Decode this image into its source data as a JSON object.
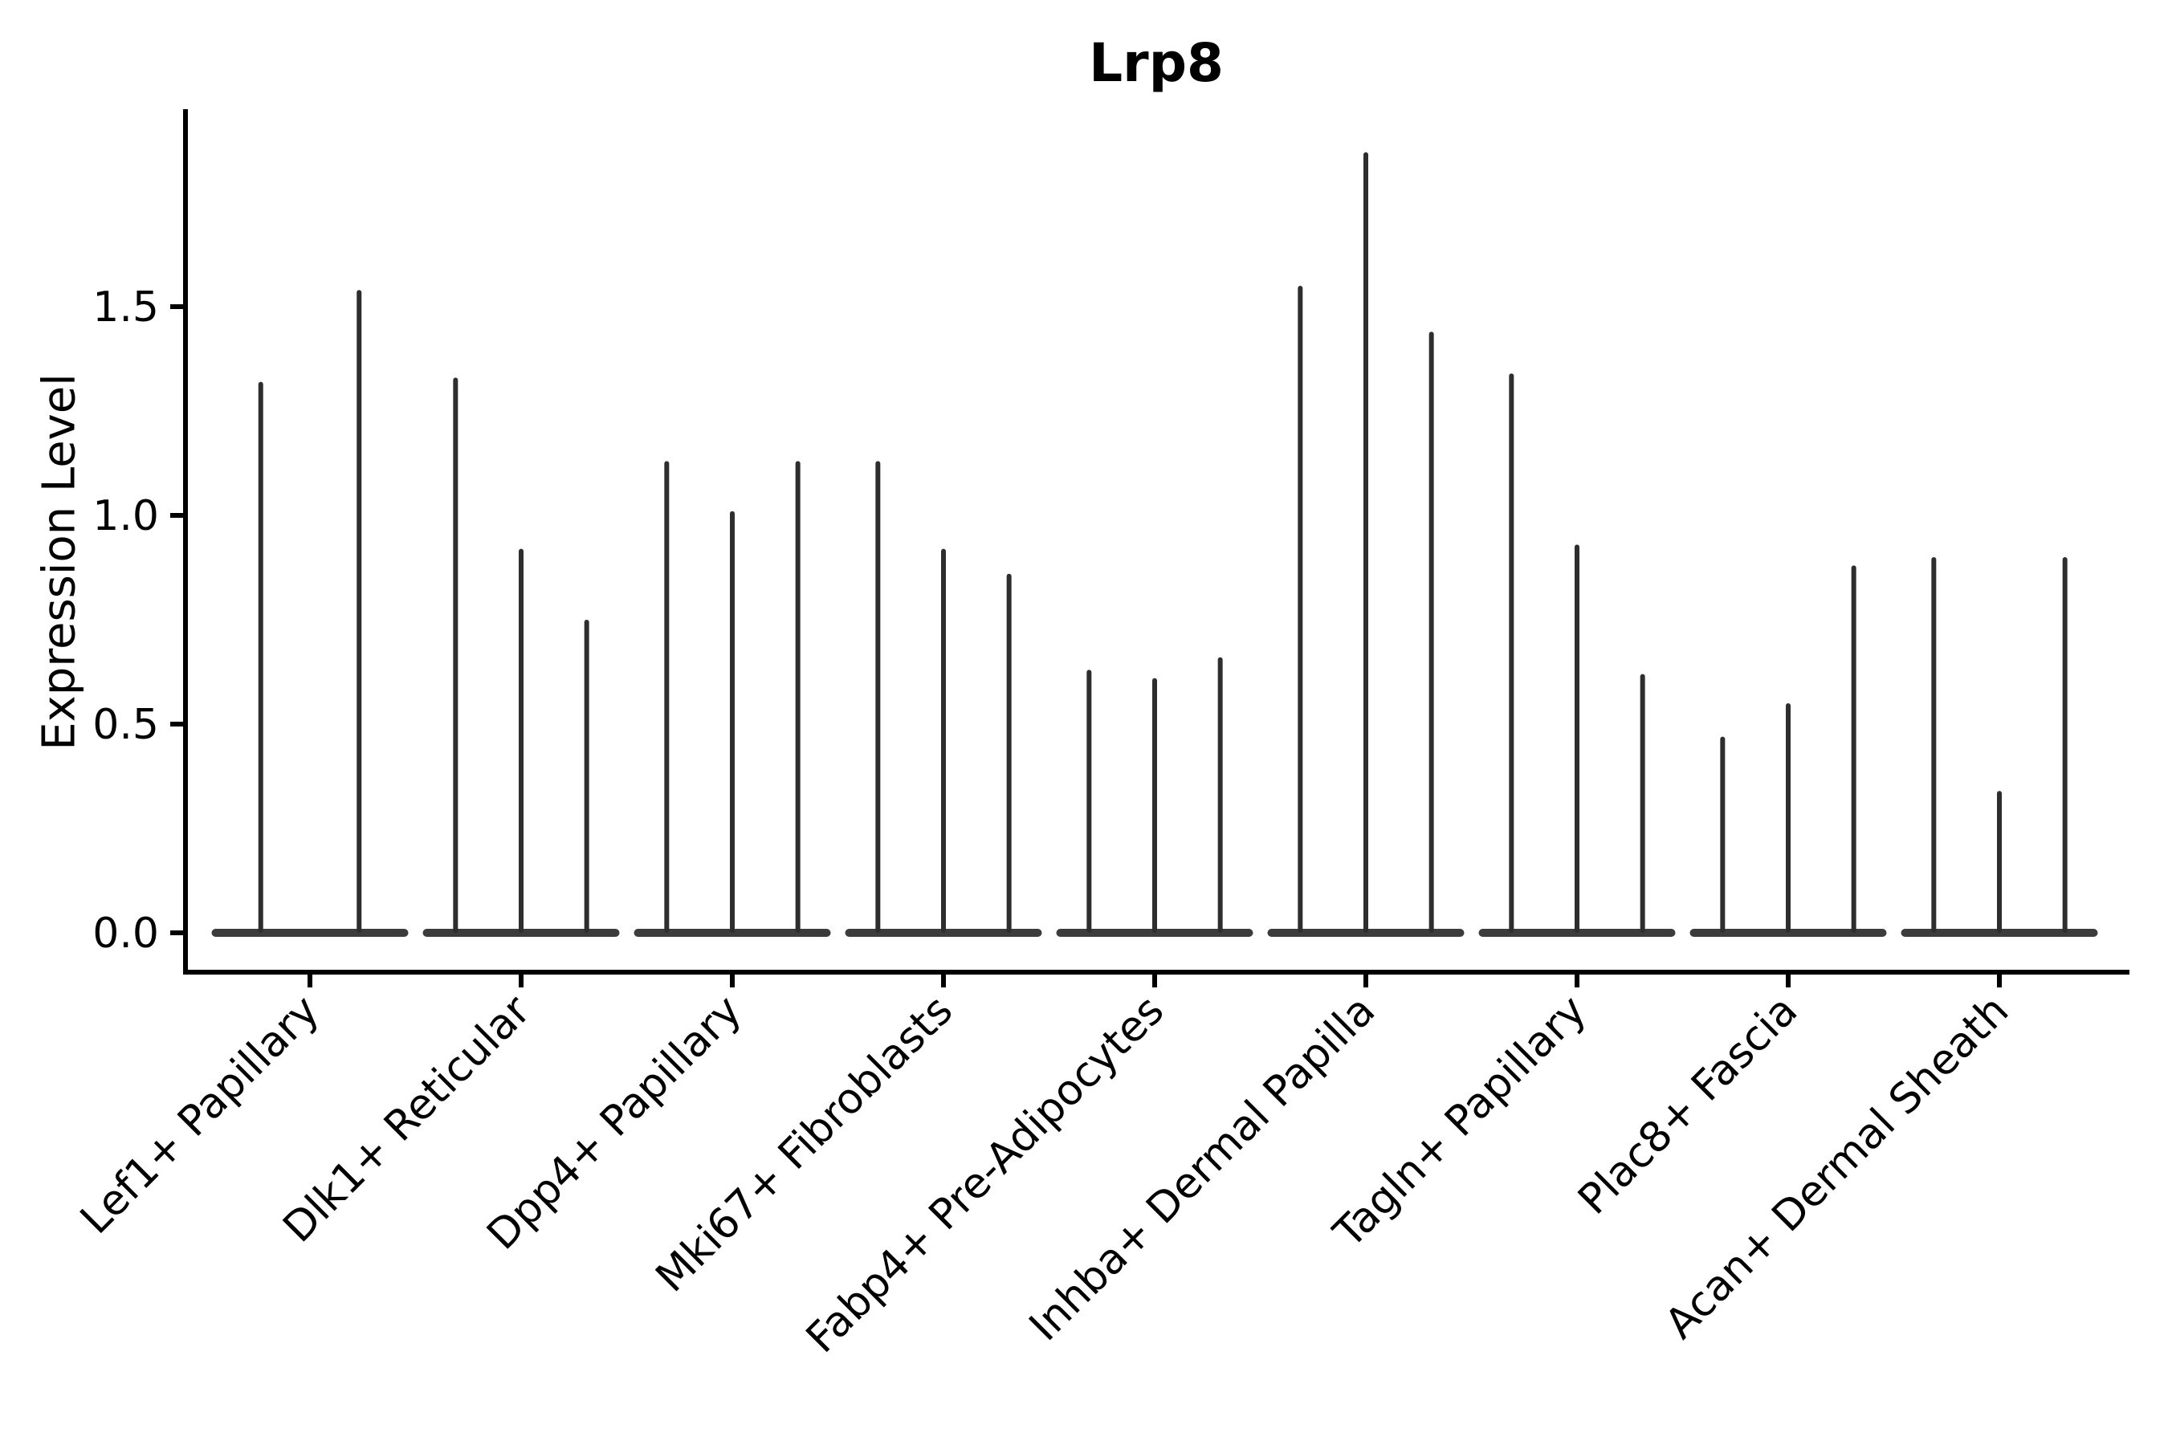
{
  "chart_data": {
    "type": "violin",
    "title": "Lrp8",
    "ylabel": "Expression Level",
    "xlabel": "",
    "categories": [
      "Lef1+ Papillary",
      "Dlk1+ Reticular",
      "Dpp4+ Papillary",
      "Mki67+ Fibroblasts",
      "Fabp4+ Pre-Adipocytes",
      "Inhba+ Dermal Papilla",
      "Tagln+ Papillary",
      "Plac8+ Fascia",
      "Acan+ Dermal Sheath"
    ],
    "violin_maxima": [
      [
        1.32,
        1.54
      ],
      [
        1.33,
        0.92,
        0.75
      ],
      [
        1.13,
        1.01,
        1.13
      ],
      [
        1.13,
        0.92,
        0.86
      ],
      [
        0.63,
        0.61,
        0.66
      ],
      [
        1.55,
        1.87,
        1.44
      ],
      [
        1.34,
        0.93,
        0.62
      ],
      [
        0.47,
        0.55,
        0.88
      ],
      [
        0.9,
        0.34,
        0.9
      ]
    ],
    "n_violins_per_category": [
      2,
      3,
      3,
      3,
      3,
      3,
      3,
      3,
      3
    ],
    "baseline_value": 0.0,
    "yticks": [
      0.0,
      0.5,
      1.0,
      1.5
    ],
    "ytick_labels": [
      "0.0",
      "0.5",
      "1.0",
      "1.5"
    ],
    "ylim": [
      -0.09,
      1.96
    ],
    "grid": false,
    "legend": null,
    "colors": {
      "spike": "#2e2e2e",
      "baseline_bar": "#3c3c3c",
      "axis": "#000000",
      "text": "#000000",
      "background": "#ffffff"
    }
  }
}
